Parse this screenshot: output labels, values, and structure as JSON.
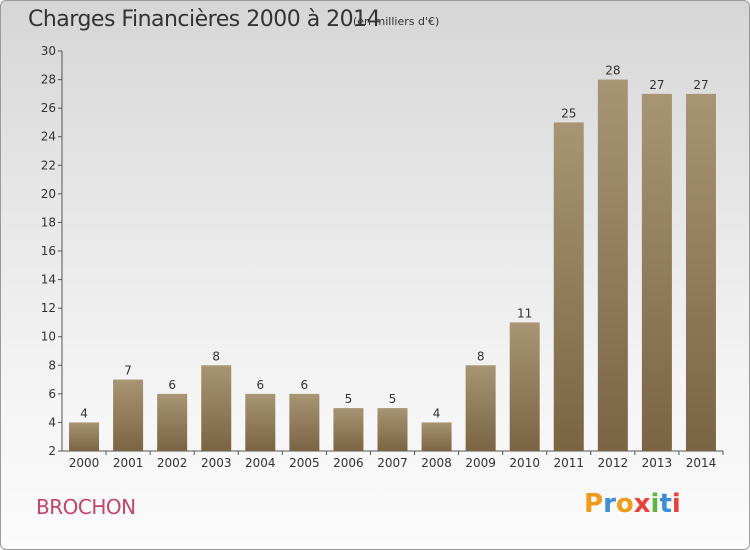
{
  "header": {
    "title": "Charges Financières 2000 à 2014",
    "unit": "(en milliers d'€)"
  },
  "footer": {
    "commune": "BROCHON",
    "logo_text": "Proxiti"
  },
  "colors": {
    "bar_dark": "#7a6444",
    "bar_light": "#a89573",
    "commune": "#c2456a",
    "logo": [
      "#f09a1c",
      "#3b8fd6",
      "#f09a1c",
      "#e8433a",
      "#62b246",
      "#3b8fd6",
      "#e8433a"
    ]
  },
  "chart_data": {
    "type": "bar",
    "title": "Charges Financières 2000 à 2014",
    "subtitle": "(en milliers d'€)",
    "categories": [
      "2000",
      "2001",
      "2002",
      "2003",
      "2004",
      "2005",
      "2006",
      "2007",
      "2008",
      "2009",
      "2010",
      "2011",
      "2012",
      "2013",
      "2014"
    ],
    "values": [
      4,
      7,
      6,
      8,
      6,
      6,
      5,
      5,
      4,
      8,
      11,
      25,
      28,
      27,
      27
    ],
    "ylim": [
      2,
      30
    ],
    "yticks": [
      2,
      4,
      6,
      8,
      10,
      12,
      14,
      16,
      18,
      20,
      22,
      24,
      26,
      28,
      30
    ],
    "grid": false,
    "data_labels": true
  }
}
